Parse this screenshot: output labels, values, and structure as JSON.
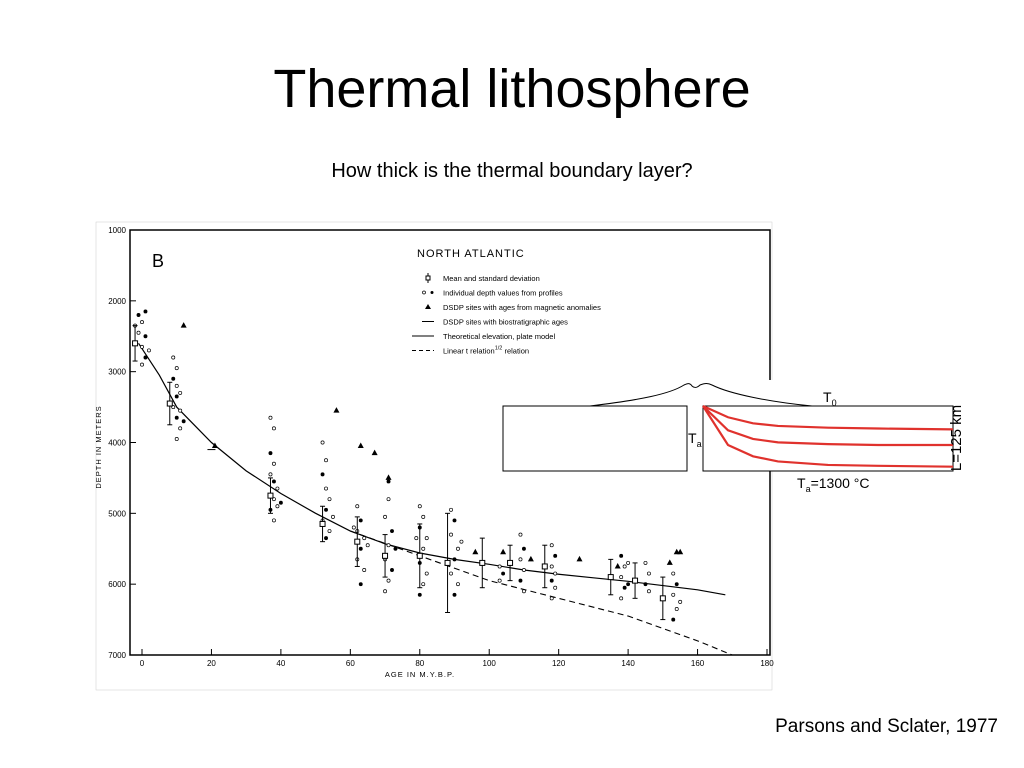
{
  "slide": {
    "title": "Thermal lithosphere",
    "subtitle": "How thick is the thermal boundary layer?",
    "citation": "Parsons and Sclater, 1977"
  },
  "chart_data": [
    {
      "type": "scatter",
      "panel_label": "B",
      "title": "NORTH ATLANTIC",
      "xlabel": "AGE IN M.Y.B.P.",
      "ylabel": "DEPTH IN METERS",
      "xlim": [
        -5,
        180
      ],
      "ylim": [
        1000,
        7000
      ],
      "y_inverted": true,
      "xticks": [
        "0",
        "20",
        "40",
        "60",
        "80",
        "100",
        "120",
        "140",
        "160",
        "180"
      ],
      "yticks": [
        "1000",
        "2000",
        "3000",
        "4000",
        "5000",
        "6000",
        "7000"
      ],
      "grid": false,
      "legend_position": "top-right",
      "legend": [
        {
          "label": "Mean and standard deviation",
          "marker": "square-errorbar"
        },
        {
          "label": "Individual depth values from profiles",
          "marker": "dots"
        },
        {
          "label": "DSDP sites with ages from magnetic anomalies",
          "marker": "triangle"
        },
        {
          "label": "DSDP sites with biostratigraphic ages",
          "marker": "bar"
        },
        {
          "label": "Theoretical elevation, plate model",
          "marker": "solid-line"
        },
        {
          "label": "Linear t relation",
          "label_superscript": "1/2",
          "marker": "dashed-line"
        }
      ],
      "series": [
        {
          "name": "Mean and standard deviation",
          "points": [
            {
              "x": -2,
              "y": 2600,
              "err": 250
            },
            {
              "x": 8,
              "y": 3450,
              "err": 300
            },
            {
              "x": 37,
              "y": 4750,
              "err": 250
            },
            {
              "x": 52,
              "y": 5150,
              "err": 250
            },
            {
              "x": 62,
              "y": 5400,
              "err": 350
            },
            {
              "x": 70,
              "y": 5600,
              "err": 300
            },
            {
              "x": 80,
              "y": 5600,
              "err": 450
            },
            {
              "x": 88,
              "y": 5700,
              "err": 700
            },
            {
              "x": 98,
              "y": 5700,
              "err": 350
            },
            {
              "x": 106,
              "y": 5700,
              "err": 250
            },
            {
              "x": 116,
              "y": 5750,
              "err": 300
            },
            {
              "x": 135,
              "y": 5900,
              "err": 250
            },
            {
              "x": 142,
              "y": 5950,
              "err": 250
            },
            {
              "x": 150,
              "y": 6200,
              "err": 300
            }
          ]
        },
        {
          "name": "Individual depth values from profiles",
          "points": [
            {
              "x": -1,
              "y": 2200
            },
            {
              "x": 0,
              "y": 2300
            },
            {
              "x": -1,
              "y": 2450
            },
            {
              "x": 1,
              "y": 2500
            },
            {
              "x": 0,
              "y": 2650
            },
            {
              "x": 2,
              "y": 2700
            },
            {
              "x": 1,
              "y": 2800
            },
            {
              "x": 0,
              "y": 2900
            },
            {
              "x": -2,
              "y": 2350
            },
            {
              "x": 1,
              "y": 2150
            },
            {
              "x": 9,
              "y": 2800
            },
            {
              "x": 10,
              "y": 2950
            },
            {
              "x": 9,
              "y": 3100
            },
            {
              "x": 10,
              "y": 3200
            },
            {
              "x": 11,
              "y": 3300
            },
            {
              "x": 10,
              "y": 3350
            },
            {
              "x": 9,
              "y": 3500
            },
            {
              "x": 11,
              "y": 3550
            },
            {
              "x": 10,
              "y": 3650
            },
            {
              "x": 11,
              "y": 3800
            },
            {
              "x": 10,
              "y": 3950
            },
            {
              "x": 12,
              "y": 3700
            },
            {
              "x": 37,
              "y": 3650
            },
            {
              "x": 38,
              "y": 3800
            },
            {
              "x": 37,
              "y": 4150
            },
            {
              "x": 38,
              "y": 4300
            },
            {
              "x": 37,
              "y": 4450
            },
            {
              "x": 38,
              "y": 4550
            },
            {
              "x": 39,
              "y": 4650
            },
            {
              "x": 38,
              "y": 4800
            },
            {
              "x": 37,
              "y": 4950
            },
            {
              "x": 39,
              "y": 4900
            },
            {
              "x": 38,
              "y": 5100
            },
            {
              "x": 40,
              "y": 4850
            },
            {
              "x": 52,
              "y": 4000
            },
            {
              "x": 53,
              "y": 4250
            },
            {
              "x": 52,
              "y": 4450
            },
            {
              "x": 53,
              "y": 4650
            },
            {
              "x": 54,
              "y": 4800
            },
            {
              "x": 53,
              "y": 4950
            },
            {
              "x": 52,
              "y": 5100
            },
            {
              "x": 54,
              "y": 5250
            },
            {
              "x": 53,
              "y": 5350
            },
            {
              "x": 55,
              "y": 5050
            },
            {
              "x": 62,
              "y": 4900
            },
            {
              "x": 63,
              "y": 5100
            },
            {
              "x": 62,
              "y": 5250
            },
            {
              "x": 64,
              "y": 5350
            },
            {
              "x": 63,
              "y": 5500
            },
            {
              "x": 62,
              "y": 5650
            },
            {
              "x": 64,
              "y": 5800
            },
            {
              "x": 63,
              "y": 6000
            },
            {
              "x": 65,
              "y": 5450
            },
            {
              "x": 61,
              "y": 5200
            },
            {
              "x": 71,
              "y": 4550
            },
            {
              "x": 71,
              "y": 4800
            },
            {
              "x": 70,
              "y": 5050
            },
            {
              "x": 72,
              "y": 5250
            },
            {
              "x": 71,
              "y": 5450
            },
            {
              "x": 70,
              "y": 5650
            },
            {
              "x": 72,
              "y": 5800
            },
            {
              "x": 71,
              "y": 5950
            },
            {
              "x": 70,
              "y": 6100
            },
            {
              "x": 73,
              "y": 5500
            },
            {
              "x": 80,
              "y": 4900
            },
            {
              "x": 81,
              "y": 5050
            },
            {
              "x": 80,
              "y": 5200
            },
            {
              "x": 82,
              "y": 5350
            },
            {
              "x": 81,
              "y": 5500
            },
            {
              "x": 80,
              "y": 5700
            },
            {
              "x": 82,
              "y": 5850
            },
            {
              "x": 81,
              "y": 6000
            },
            {
              "x": 80,
              "y": 6150
            },
            {
              "x": 79,
              "y": 5350
            },
            {
              "x": 89,
              "y": 4950
            },
            {
              "x": 90,
              "y": 5100
            },
            {
              "x": 89,
              "y": 5300
            },
            {
              "x": 91,
              "y": 5500
            },
            {
              "x": 90,
              "y": 5650
            },
            {
              "x": 89,
              "y": 5850
            },
            {
              "x": 91,
              "y": 6000
            },
            {
              "x": 90,
              "y": 6150
            },
            {
              "x": 92,
              "y": 5400
            },
            {
              "x": 103,
              "y": 5750
            },
            {
              "x": 104,
              "y": 5850
            },
            {
              "x": 103,
              "y": 5950
            },
            {
              "x": 109,
              "y": 5300
            },
            {
              "x": 110,
              "y": 5500
            },
            {
              "x": 109,
              "y": 5650
            },
            {
              "x": 110,
              "y": 5800
            },
            {
              "x": 109,
              "y": 5950
            },
            {
              "x": 110,
              "y": 6100
            },
            {
              "x": 118,
              "y": 5450
            },
            {
              "x": 119,
              "y": 5600
            },
            {
              "x": 118,
              "y": 5750
            },
            {
              "x": 119,
              "y": 5850
            },
            {
              "x": 118,
              "y": 5950
            },
            {
              "x": 119,
              "y": 6050
            },
            {
              "x": 118,
              "y": 6200
            },
            {
              "x": 138,
              "y": 5600
            },
            {
              "x": 139,
              "y": 5750
            },
            {
              "x": 138,
              "y": 5900
            },
            {
              "x": 139,
              "y": 6050
            },
            {
              "x": 138,
              "y": 6200
            },
            {
              "x": 140,
              "y": 5700
            },
            {
              "x": 140,
              "y": 6000
            },
            {
              "x": 145,
              "y": 5700
            },
            {
              "x": 146,
              "y": 5850
            },
            {
              "x": 145,
              "y": 6000
            },
            {
              "x": 146,
              "y": 6100
            },
            {
              "x": 153,
              "y": 5850
            },
            {
              "x": 154,
              "y": 6000
            },
            {
              "x": 153,
              "y": 6150
            },
            {
              "x": 154,
              "y": 6350
            },
            {
              "x": 153,
              "y": 6500
            },
            {
              "x": 155,
              "y": 6250
            }
          ]
        },
        {
          "name": "DSDP sites with ages from magnetic anomalies",
          "points": [
            {
              "x": 12,
              "y": 2350
            },
            {
              "x": 21,
              "y": 4050
            },
            {
              "x": 56,
              "y": 3550
            },
            {
              "x": 63,
              "y": 4050
            },
            {
              "x": 67,
              "y": 4150
            },
            {
              "x": 71,
              "y": 4500
            },
            {
              "x": 96,
              "y": 5550
            },
            {
              "x": 104,
              "y": 5550
            },
            {
              "x": 112,
              "y": 5650
            },
            {
              "x": 126,
              "y": 5650
            },
            {
              "x": 137,
              "y": 5750
            },
            {
              "x": 154,
              "y": 5550
            },
            {
              "x": 155,
              "y": 5550
            },
            {
              "x": 152,
              "y": 5700
            }
          ]
        },
        {
          "name": "DSDP sites with biostratigraphic ages",
          "points": [
            {
              "x": 20,
              "y": 4100
            }
          ]
        },
        {
          "name": "Theoretical elevation, plate model",
          "x": [
            -1,
            5,
            10,
            20,
            30,
            40,
            50,
            60,
            70,
            80,
            90,
            100,
            110,
            120,
            130,
            140,
            150,
            160,
            168
          ],
          "y": [
            2600,
            3050,
            3500,
            4000,
            4400,
            4720,
            5000,
            5250,
            5430,
            5560,
            5650,
            5720,
            5800,
            5860,
            5910,
            5960,
            6020,
            6080,
            6150
          ]
        },
        {
          "name": "Linear t relation",
          "x": [
            60,
            80,
            100,
            120,
            140,
            160,
            170
          ],
          "y": [
            5250,
            5600,
            5950,
            6200,
            6450,
            6800,
            7000
          ]
        }
      ]
    },
    {
      "type": "line",
      "labels": {
        "t0": "T",
        "t0_sub": "0",
        "ta": "T",
        "ta_sub": "a",
        "ta_value_prefix": "T",
        "ta_value_sub": "a",
        "ta_value_rest": "=1300 °C",
        "thickness": "L=125 km"
      },
      "series": [
        {
          "x": [
            0,
            0.1,
            0.2,
            0.3,
            0.5,
            0.7,
            1.0
          ],
          "y": [
            0,
            0.45,
            0.58,
            0.64,
            0.68,
            0.69,
            0.7
          ]
        },
        {
          "x": [
            0,
            0.1,
            0.2,
            0.3,
            0.5,
            0.7,
            1.0
          ],
          "y": [
            0,
            0.28,
            0.38,
            0.42,
            0.44,
            0.45,
            0.45
          ]
        },
        {
          "x": [
            0,
            0.1,
            0.2,
            0.3,
            0.5,
            0.7,
            1.0
          ],
          "y": [
            0,
            0.13,
            0.2,
            0.23,
            0.25,
            0.26,
            0.27
          ]
        }
      ],
      "colors": {
        "curves": "#e0322d",
        "frame": "#000000"
      }
    }
  ]
}
